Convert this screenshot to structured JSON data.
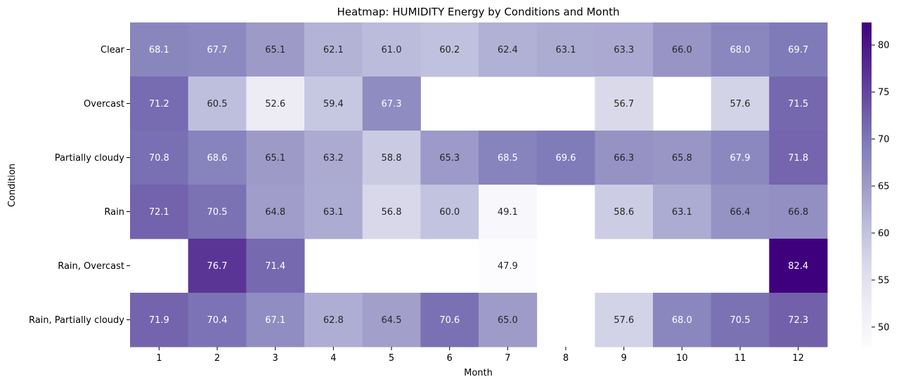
{
  "chart_data": {
    "type": "heatmap",
    "title": "Heatmap: HUMIDITY Energy by Conditions and Month",
    "xlabel": "Month",
    "ylabel": "Condition",
    "x_categories": [
      "1",
      "2",
      "3",
      "4",
      "5",
      "6",
      "7",
      "8",
      "9",
      "10",
      "11",
      "12"
    ],
    "y_categories": [
      "Clear",
      "Overcast",
      "Partially cloudy",
      "Rain",
      "Rain, Overcast",
      "Rain, Partially cloudy"
    ],
    "values": [
      [
        68.1,
        67.7,
        65.1,
        62.1,
        61.0,
        60.2,
        62.4,
        63.1,
        63.3,
        66.0,
        68.0,
        69.7
      ],
      [
        71.2,
        60.5,
        52.6,
        59.4,
        67.3,
        null,
        null,
        null,
        56.7,
        null,
        57.6,
        71.5
      ],
      [
        70.8,
        68.6,
        65.1,
        63.2,
        58.8,
        65.3,
        68.5,
        69.6,
        66.3,
        65.8,
        67.9,
        71.8
      ],
      [
        72.1,
        70.5,
        64.8,
        63.1,
        56.8,
        60.0,
        49.1,
        null,
        58.6,
        63.1,
        66.4,
        66.8
      ],
      [
        null,
        76.7,
        71.4,
        null,
        null,
        null,
        47.9,
        null,
        null,
        null,
        null,
        82.4
      ],
      [
        71.9,
        70.4,
        67.1,
        62.8,
        64.5,
        70.6,
        65.0,
        null,
        57.6,
        68.0,
        70.5,
        72.3
      ]
    ],
    "colormap": "Purples",
    "vmin": 47.9,
    "vmax": 82.4,
    "colorbar_ticks": [
      50,
      55,
      60,
      65,
      70,
      75,
      80
    ],
    "grid": false,
    "legend": "colorbar-right"
  }
}
